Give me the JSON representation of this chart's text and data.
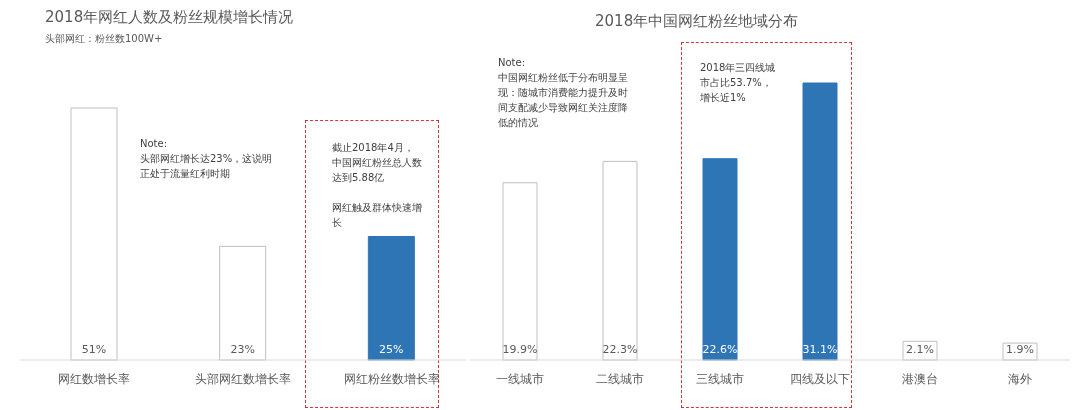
{
  "chart_data": [
    {
      "type": "bar",
      "title": "2018年网红人数及粉丝规模增长情况",
      "subtitle": "头部网红：粉丝数100W+",
      "categories": [
        "网红数增长率",
        "头部网红数增长率",
        "网红粉丝数增长率"
      ],
      "values": [
        51,
        23,
        25
      ],
      "value_labels": [
        "51%",
        "23%",
        "25%"
      ],
      "colors": [
        "#ffffff",
        "#ffffff",
        "#2e75b6"
      ],
      "annotations": [
        "Note:\n头部网红增长达23%，这说明正处于流量红利时期",
        "截止2018年4月，中国网红粉丝总人数达到5.88亿",
        "网红触及群体快速增长"
      ],
      "legend": false
    },
    {
      "type": "bar",
      "title": "2018年中国网红粉丝地域分布",
      "categories": [
        "一线城市",
        "二线城市",
        "三线城市",
        "四线及以下",
        "港澳台",
        "海外"
      ],
      "values": [
        19.9,
        22.3,
        22.6,
        31.1,
        2.1,
        1.9
      ],
      "value_labels": [
        "19.9%",
        "22.3%",
        "22.6%",
        "31.1%",
        "2.1%",
        "1.9%"
      ],
      "colors": [
        "#ffffff",
        "#ffffff",
        "#2e75b6",
        "#2e75b6",
        "#ffffff",
        "#ffffff"
      ],
      "annotations": [
        "Note:\n中国网红粉丝低于分布明显呈现：随城市消费能力提升及时间支配减少导致网红关注度降低的情况",
        "2018年三四线城市占比53.7%，增长近1%"
      ],
      "legend": false
    }
  ]
}
